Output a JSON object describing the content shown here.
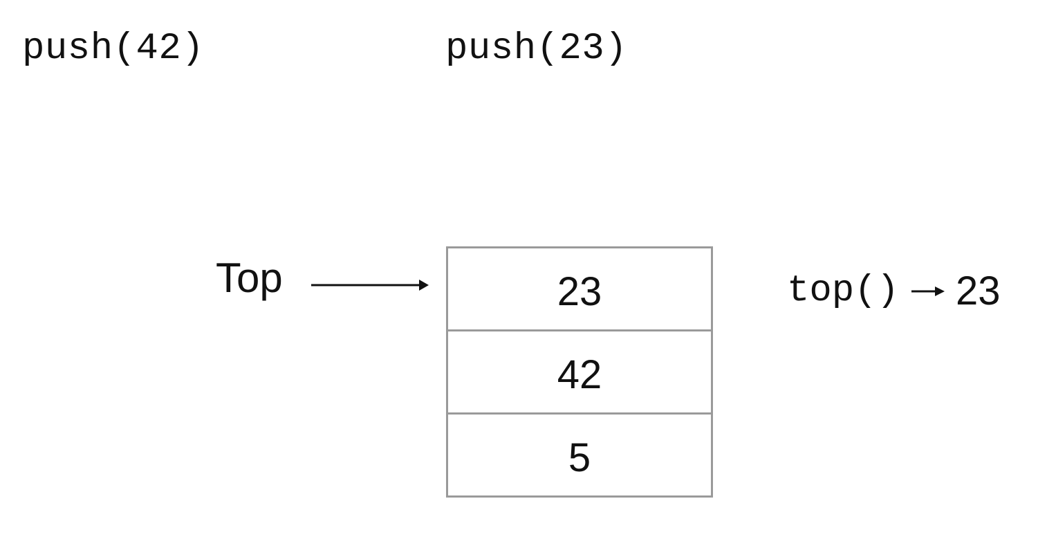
{
  "operations": [
    "push(42)",
    "push(23)"
  ],
  "top_label": "Top",
  "stack": {
    "items": [
      "23",
      "42",
      "5"
    ]
  },
  "result": {
    "call": "top()",
    "value": "23"
  },
  "colors": {
    "text": "#111111",
    "border": "#9a9a9a"
  },
  "icons": {
    "pointer": "arrow-right-icon",
    "result_arrow": "arrow-right-icon"
  }
}
